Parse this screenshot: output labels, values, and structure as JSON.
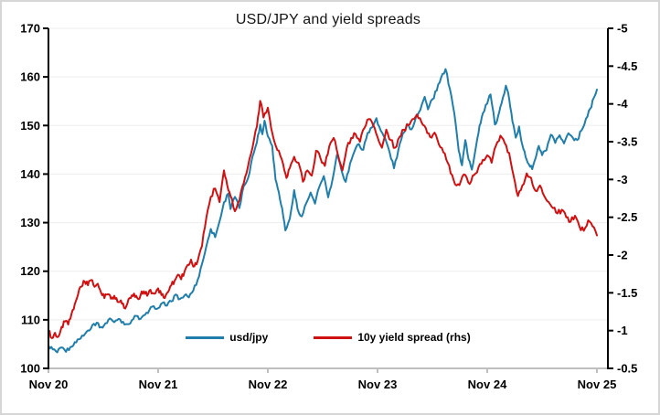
{
  "window": {
    "background": "#ffffff",
    "frame_color": "#d6d6d6"
  },
  "chart_data": {
    "type": "line",
    "title": "USD/JPY and yield spreads",
    "grid": "horizontal, light, at left-axis ticks",
    "x_axis": {
      "tick_labels": [
        "Nov 20",
        "Nov 21",
        "Nov 22",
        "Nov 23",
        "Nov 24",
        "Nov 25"
      ],
      "range_years": [
        0,
        5
      ],
      "line_color": "#bfbfbf"
    },
    "left_axis": {
      "tick_labels": [
        "170",
        "160",
        "150",
        "140",
        "130",
        "120",
        "110",
        "100"
      ],
      "range": [
        100,
        170
      ],
      "line_color": "#000000"
    },
    "right_axis": {
      "tick_labels": [
        "-5",
        "-4.5",
        "-4",
        "-3.5",
        "-3",
        "-2.5",
        "-2",
        "-1.5",
        "-1",
        "-0.5"
      ],
      "range": [
        -5,
        -0.5
      ],
      "orientation": "-5 at top, -0.5 at bottom",
      "line_color": "#000000"
    },
    "legend": {
      "position": "bottom-center",
      "items": [
        {
          "label": "usd/jpy",
          "color": "#1F7EAB"
        },
        {
          "label": "10y yield spread (rhs)",
          "color": "#D01111"
        }
      ]
    },
    "series": [
      {
        "name": "usd/jpy",
        "axis": "left",
        "color": "#1F7EAB",
        "jitter": 0.42,
        "points": [
          [
            0.0,
            104.7
          ],
          [
            0.04,
            103.9
          ],
          [
            0.08,
            103.3
          ],
          [
            0.12,
            104.3
          ],
          [
            0.16,
            103.4
          ],
          [
            0.2,
            104.4
          ],
          [
            0.24,
            105.4
          ],
          [
            0.28,
            106.0
          ],
          [
            0.32,
            106.7
          ],
          [
            0.36,
            107.8
          ],
          [
            0.4,
            108.9
          ],
          [
            0.44,
            109.4
          ],
          [
            0.48,
            108.5
          ],
          [
            0.52,
            109.3
          ],
          [
            0.56,
            110.3
          ],
          [
            0.6,
            109.5
          ],
          [
            0.64,
            110.2
          ],
          [
            0.68,
            109.6
          ],
          [
            0.72,
            109.1
          ],
          [
            0.76,
            109.9
          ],
          [
            0.8,
            110.8
          ],
          [
            0.84,
            110.2
          ],
          [
            0.88,
            111.0
          ],
          [
            0.92,
            112.0
          ],
          [
            0.96,
            112.8
          ],
          [
            1.0,
            112.4
          ],
          [
            1.04,
            113.5
          ],
          [
            1.08,
            112.9
          ],
          [
            1.12,
            113.8
          ],
          [
            1.16,
            115.2
          ],
          [
            1.2,
            114.3
          ],
          [
            1.24,
            115.0
          ],
          [
            1.28,
            114.6
          ],
          [
            1.32,
            116.0
          ],
          [
            1.36,
            118.2
          ],
          [
            1.4,
            121.5
          ],
          [
            1.44,
            125.2
          ],
          [
            1.48,
            128.7
          ],
          [
            1.52,
            127.0
          ],
          [
            1.56,
            130.3
          ],
          [
            1.6,
            134.2
          ],
          [
            1.64,
            136.0
          ],
          [
            1.66,
            132.8
          ],
          [
            1.7,
            135.3
          ],
          [
            1.74,
            133.0
          ],
          [
            1.78,
            137.5
          ],
          [
            1.82,
            139.2
          ],
          [
            1.86,
            143.6
          ],
          [
            1.9,
            146.5
          ],
          [
            1.93,
            150.2
          ],
          [
            1.95,
            148.2
          ],
          [
            1.97,
            151.0
          ],
          [
            2.0,
            147.8
          ],
          [
            2.04,
            145.8
          ],
          [
            2.07,
            138.9
          ],
          [
            2.1,
            136.3
          ],
          [
            2.13,
            133.0
          ],
          [
            2.16,
            128.4
          ],
          [
            2.2,
            130.8
          ],
          [
            2.24,
            136.7
          ],
          [
            2.27,
            132.9
          ],
          [
            2.31,
            131.3
          ],
          [
            2.35,
            134.0
          ],
          [
            2.39,
            136.2
          ],
          [
            2.43,
            133.9
          ],
          [
            2.47,
            137.4
          ],
          [
            2.51,
            139.6
          ],
          [
            2.55,
            135.2
          ],
          [
            2.59,
            138.9
          ],
          [
            2.63,
            144.0
          ],
          [
            2.67,
            140.9
          ],
          [
            2.71,
            138.4
          ],
          [
            2.75,
            142.2
          ],
          [
            2.79,
            144.7
          ],
          [
            2.83,
            146.2
          ],
          [
            2.87,
            145.0
          ],
          [
            2.91,
            148.5
          ],
          [
            2.95,
            149.6
          ],
          [
            2.99,
            151.5
          ],
          [
            3.03,
            148.9
          ],
          [
            3.07,
            147.3
          ],
          [
            3.11,
            144.5
          ],
          [
            3.15,
            141.2
          ],
          [
            3.19,
            145.0
          ],
          [
            3.23,
            148.3
          ],
          [
            3.27,
            150.3
          ],
          [
            3.31,
            149.2
          ],
          [
            3.35,
            151.7
          ],
          [
            3.39,
            153.2
          ],
          [
            3.43,
            155.9
          ],
          [
            3.46,
            153.3
          ],
          [
            3.5,
            155.4
          ],
          [
            3.54,
            157.2
          ],
          [
            3.58,
            159.9
          ],
          [
            3.62,
            161.6
          ],
          [
            3.66,
            157.5
          ],
          [
            3.7,
            152.5
          ],
          [
            3.74,
            144.8
          ],
          [
            3.77,
            141.8
          ],
          [
            3.8,
            147.0
          ],
          [
            3.83,
            143.0
          ],
          [
            3.86,
            140.9
          ],
          [
            3.9,
            146.0
          ],
          [
            3.93,
            150.0
          ],
          [
            3.96,
            152.5
          ],
          [
            4.0,
            154.5
          ],
          [
            4.03,
            156.4
          ],
          [
            4.07,
            150.2
          ],
          [
            4.1,
            152.0
          ],
          [
            4.13,
            154.5
          ],
          [
            4.17,
            158.2
          ],
          [
            4.2,
            155.5
          ],
          [
            4.23,
            150.8
          ],
          [
            4.26,
            147.5
          ],
          [
            4.29,
            149.8
          ],
          [
            4.32,
            146.0
          ],
          [
            4.35,
            143.5
          ],
          [
            4.38,
            142.0
          ],
          [
            4.41,
            141.0
          ],
          [
            4.44,
            143.2
          ],
          [
            4.47,
            145.8
          ],
          [
            4.5,
            143.9
          ],
          [
            4.54,
            144.9
          ],
          [
            4.58,
            148.1
          ],
          [
            4.62,
            146.4
          ],
          [
            4.66,
            148.0
          ],
          [
            4.7,
            146.3
          ],
          [
            4.74,
            148.4
          ],
          [
            4.78,
            147.5
          ],
          [
            4.82,
            147.0
          ],
          [
            4.86,
            149.0
          ],
          [
            4.9,
            151.4
          ],
          [
            4.94,
            153.5
          ],
          [
            4.97,
            155.6
          ],
          [
            5.0,
            157.4
          ]
        ]
      },
      {
        "name": "10y yield spread (rhs)",
        "axis": "right",
        "color": "#D01111",
        "jitter": 0.035,
        "points": [
          [
            0.0,
            -1.0
          ],
          [
            0.03,
            -0.9
          ],
          [
            0.06,
            -0.97
          ],
          [
            0.09,
            -0.92
          ],
          [
            0.12,
            -1.05
          ],
          [
            0.15,
            -1.12
          ],
          [
            0.18,
            -1.08
          ],
          [
            0.21,
            -1.22
          ],
          [
            0.24,
            -1.35
          ],
          [
            0.27,
            -1.48
          ],
          [
            0.3,
            -1.58
          ],
          [
            0.33,
            -1.65
          ],
          [
            0.36,
            -1.6
          ],
          [
            0.39,
            -1.67
          ],
          [
            0.42,
            -1.58
          ],
          [
            0.45,
            -1.62
          ],
          [
            0.48,
            -1.5
          ],
          [
            0.51,
            -1.43
          ],
          [
            0.54,
            -1.48
          ],
          [
            0.57,
            -1.42
          ],
          [
            0.6,
            -1.46
          ],
          [
            0.63,
            -1.38
          ],
          [
            0.66,
            -1.4
          ],
          [
            0.69,
            -1.3
          ],
          [
            0.72,
            -1.36
          ],
          [
            0.75,
            -1.43
          ],
          [
            0.78,
            -1.49
          ],
          [
            0.81,
            -1.43
          ],
          [
            0.84,
            -1.47
          ],
          [
            0.87,
            -1.52
          ],
          [
            0.9,
            -1.46
          ],
          [
            0.93,
            -1.54
          ],
          [
            0.96,
            -1.49
          ],
          [
            1.0,
            -1.56
          ],
          [
            1.03,
            -1.47
          ],
          [
            1.06,
            -1.43
          ],
          [
            1.09,
            -1.51
          ],
          [
            1.12,
            -1.6
          ],
          [
            1.15,
            -1.66
          ],
          [
            1.18,
            -1.74
          ],
          [
            1.21,
            -1.68
          ],
          [
            1.24,
            -1.78
          ],
          [
            1.27,
            -1.87
          ],
          [
            1.3,
            -1.94
          ],
          [
            1.33,
            -1.85
          ],
          [
            1.36,
            -1.92
          ],
          [
            1.4,
            -2.12
          ],
          [
            1.44,
            -2.5
          ],
          [
            1.48,
            -2.77
          ],
          [
            1.52,
            -2.88
          ],
          [
            1.56,
            -2.7
          ],
          [
            1.6,
            -3.12
          ],
          [
            1.63,
            -2.92
          ],
          [
            1.66,
            -2.78
          ],
          [
            1.7,
            -2.58
          ],
          [
            1.74,
            -2.72
          ],
          [
            1.78,
            -2.95
          ],
          [
            1.82,
            -3.18
          ],
          [
            1.86,
            -3.42
          ],
          [
            1.9,
            -3.7
          ],
          [
            1.93,
            -4.04
          ],
          [
            1.96,
            -3.82
          ],
          [
            2.0,
            -3.95
          ],
          [
            2.03,
            -3.68
          ],
          [
            2.06,
            -3.5
          ],
          [
            2.1,
            -3.38
          ],
          [
            2.14,
            -3.2
          ],
          [
            2.17,
            -3.02
          ],
          [
            2.2,
            -3.15
          ],
          [
            2.24,
            -3.3
          ],
          [
            2.28,
            -3.22
          ],
          [
            2.32,
            -2.97
          ],
          [
            2.36,
            -3.12
          ],
          [
            2.4,
            -3.05
          ],
          [
            2.44,
            -3.38
          ],
          [
            2.48,
            -3.28
          ],
          [
            2.52,
            -3.18
          ],
          [
            2.56,
            -3.44
          ],
          [
            2.6,
            -3.55
          ],
          [
            2.64,
            -3.32
          ],
          [
            2.68,
            -3.12
          ],
          [
            2.72,
            -3.42
          ],
          [
            2.76,
            -3.55
          ],
          [
            2.8,
            -3.6
          ],
          [
            2.84,
            -3.5
          ],
          [
            2.88,
            -3.68
          ],
          [
            2.92,
            -3.8
          ],
          [
            2.96,
            -3.72
          ],
          [
            3.0,
            -3.56
          ],
          [
            3.04,
            -3.42
          ],
          [
            3.08,
            -3.66
          ],
          [
            3.12,
            -3.52
          ],
          [
            3.16,
            -3.42
          ],
          [
            3.2,
            -3.56
          ],
          [
            3.24,
            -3.66
          ],
          [
            3.28,
            -3.72
          ],
          [
            3.32,
            -3.8
          ],
          [
            3.36,
            -3.86
          ],
          [
            3.4,
            -3.76
          ],
          [
            3.44,
            -3.68
          ],
          [
            3.48,
            -3.56
          ],
          [
            3.52,
            -3.62
          ],
          [
            3.56,
            -3.46
          ],
          [
            3.6,
            -3.36
          ],
          [
            3.64,
            -3.22
          ],
          [
            3.68,
            -3.06
          ],
          [
            3.72,
            -2.92
          ],
          [
            3.76,
            -2.98
          ],
          [
            3.8,
            -3.06
          ],
          [
            3.84,
            -2.94
          ],
          [
            3.88,
            -3.06
          ],
          [
            3.92,
            -3.16
          ],
          [
            3.96,
            -3.26
          ],
          [
            4.0,
            -3.32
          ],
          [
            4.04,
            -3.22
          ],
          [
            4.08,
            -3.45
          ],
          [
            4.12,
            -3.58
          ],
          [
            4.16,
            -3.48
          ],
          [
            4.2,
            -3.35
          ],
          [
            4.24,
            -3.05
          ],
          [
            4.28,
            -2.78
          ],
          [
            4.32,
            -2.92
          ],
          [
            4.36,
            -3.08
          ],
          [
            4.4,
            -3.02
          ],
          [
            4.44,
            -2.85
          ],
          [
            4.48,
            -2.92
          ],
          [
            4.52,
            -2.78
          ],
          [
            4.56,
            -2.7
          ],
          [
            4.6,
            -2.62
          ],
          [
            4.64,
            -2.55
          ],
          [
            4.68,
            -2.6
          ],
          [
            4.72,
            -2.5
          ],
          [
            4.76,
            -2.44
          ],
          [
            4.8,
            -2.52
          ],
          [
            4.84,
            -2.38
          ],
          [
            4.88,
            -2.32
          ],
          [
            4.92,
            -2.46
          ],
          [
            4.96,
            -2.38
          ],
          [
            5.0,
            -2.26
          ]
        ]
      }
    ]
  }
}
